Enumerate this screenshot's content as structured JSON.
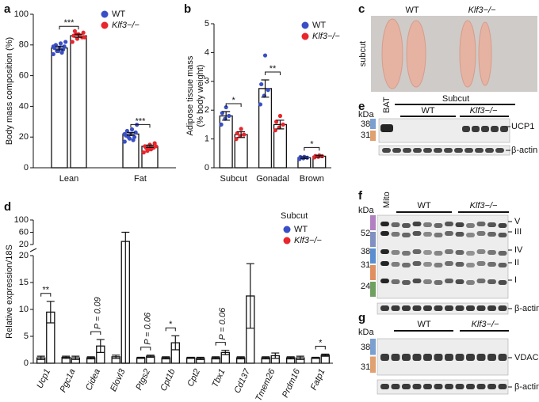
{
  "chart_data": [
    {
      "type": "bar",
      "panel": "a",
      "ylabel": "Body mass composition (%)",
      "categories": [
        "Lean",
        "Fat"
      ],
      "series": [
        {
          "name": "WT",
          "color": "#3a4fc5",
          "values": [
            78,
            22
          ],
          "errors": [
            1.2,
            1.0
          ],
          "points": [
            [
              74,
              76,
              77,
              78,
              78,
              79,
              80,
              81,
              82,
              76,
              75,
              79
            ],
            [
              17,
              19,
              20,
              21,
              22,
              23,
              24,
              25,
              28,
              20,
              18,
              22
            ]
          ]
        },
        {
          "name": "Klf3−/−",
          "color": "#e8262c",
          "values": [
            86,
            14
          ],
          "errors": [
            1.0,
            0.8
          ],
          "points": [
            [
              82,
              84,
              85,
              86,
              87,
              88,
              89,
              86,
              85,
              87
            ],
            [
              10,
              12,
              13,
              14,
              15,
              16,
              13,
              12,
              14,
              11
            ]
          ]
        }
      ],
      "annotations": [
        {
          "text": "***",
          "category": "Lean"
        },
        {
          "text": "***",
          "category": "Fat"
        }
      ],
      "ylim": [
        0,
        100
      ],
      "yticks": [
        0,
        20,
        40,
        60,
        80,
        100
      ]
    },
    {
      "type": "bar",
      "panel": "b",
      "ylabel": [
        "Adipose tissue mass",
        "(% body weight)"
      ],
      "categories": [
        "Subcut",
        "Gonadal",
        "Brown"
      ],
      "series": [
        {
          "name": "WT",
          "color": "#3a4fc5",
          "values": [
            1.8,
            2.75,
            0.35
          ],
          "errors": [
            0.15,
            0.3,
            0.03
          ],
          "points": [
            [
              1.5,
              1.7,
              1.8,
              1.9,
              2.1
            ],
            [
              2.2,
              2.5,
              2.7,
              2.9,
              3.9
            ],
            [
              0.3,
              0.33,
              0.35,
              0.37,
              0.38
            ]
          ]
        },
        {
          "name": "Klf3−/−",
          "color": "#e8262c",
          "values": [
            1.15,
            1.5,
            0.4
          ],
          "errors": [
            0.1,
            0.15,
            0.03
          ],
          "points": [
            [
              1.0,
              1.1,
              1.15,
              1.2,
              1.35
            ],
            [
              1.3,
              1.4,
              1.5,
              1.6,
              1.8
            ],
            [
              0.36,
              0.38,
              0.4,
              0.41,
              0.43
            ]
          ]
        }
      ],
      "annotations": [
        {
          "text": "*",
          "category": "Subcut"
        },
        {
          "text": "**",
          "category": "Gonadal"
        },
        {
          "text": "*",
          "category": "Brown"
        }
      ],
      "ylim": [
        0,
        5
      ],
      "yticks": [
        0,
        1,
        2,
        3,
        4,
        5
      ]
    },
    {
      "type": "bar",
      "panel": "d",
      "ylabel": "Relative expression/18S",
      "legend_title": "Subcut",
      "categories": [
        "Ucp1",
        "Pgc1a",
        "Cidea",
        "Elovl3",
        "Ptgs2",
        "Cpt1b",
        "Cpt2",
        "Tbx1",
        "Cd137",
        "Tmem26",
        "Prdm16",
        "Fatp1"
      ],
      "series": [
        {
          "name": "WT",
          "color": "#3a4fc5",
          "values": [
            1,
            1.1,
            1,
            1.2,
            1,
            1,
            1,
            1,
            1,
            1,
            1,
            1
          ],
          "errors": [
            0.3,
            0.2,
            0.2,
            0.3,
            0.1,
            0.2,
            0.1,
            0.2,
            0.2,
            0.2,
            0.2,
            0.1
          ]
        },
        {
          "name": "Klf3−/−",
          "color": "#e8262c",
          "values": [
            9.5,
            1.0,
            3.2,
            30,
            1.3,
            3.8,
            0.9,
            2.0,
            12.5,
            1.4,
            1.0,
            1.5
          ],
          "errors": [
            2,
            0.3,
            1.2,
            30,
            0.2,
            1.3,
            0.2,
            0.4,
            6,
            0.5,
            0.3,
            0.2
          ]
        }
      ],
      "annotations": [
        {
          "text": "**",
          "category": "Ucp1"
        },
        {
          "text": "P = 0.09",
          "category": "Cidea"
        },
        {
          "text": "P = 0.06",
          "category": "Ptgs2"
        },
        {
          "text": "*",
          "category": "Cpt1b"
        },
        {
          "text": "P = 0.06",
          "category": "Tbx1"
        },
        {
          "text": "*",
          "category": "Fatp1"
        }
      ],
      "ylim": [
        0,
        100
      ],
      "ybreak": 20,
      "yticks": [
        0,
        5,
        10,
        15,
        20,
        60,
        100
      ]
    }
  ],
  "photo_c": {
    "panel": "c",
    "wt": "WT",
    "ko": "Klf3−/−",
    "tissue": "subcut"
  },
  "blot_e": {
    "panel": "e",
    "kda": "kDa",
    "markers": [
      "38",
      "31"
    ],
    "lane": "BAT",
    "group": "Subcut",
    "wt": "WT",
    "ko": "Klf3−/−",
    "targets": [
      "UCP1",
      "β-actin"
    ]
  },
  "blot_f": {
    "panel": "f",
    "kda": "kDa",
    "lane": "Mito",
    "wt": "WT",
    "ko": "Klf3−/−",
    "markers": [
      "52",
      "38",
      "31",
      "24"
    ],
    "targets": [
      "V",
      "III",
      "IV",
      "II",
      "I",
      "β-actin"
    ]
  },
  "blot_g": {
    "panel": "g",
    "kda": "kDa",
    "wt": "WT",
    "ko": "Klf3−/−",
    "markers": [
      "38",
      "31"
    ],
    "targets": [
      "VDAC",
      "β-actin"
    ]
  }
}
